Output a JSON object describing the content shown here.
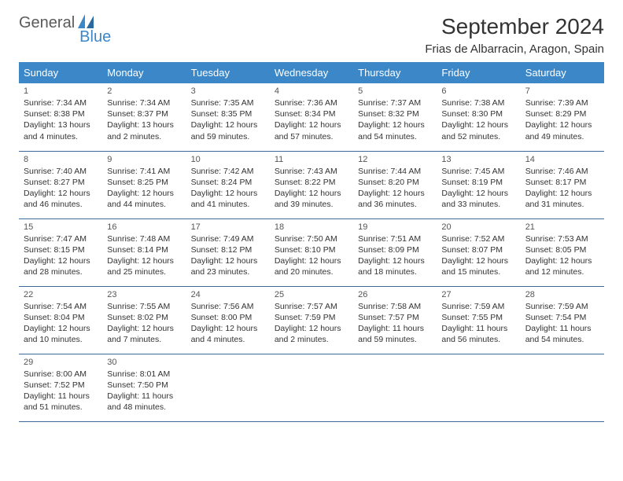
{
  "logo": {
    "text1": "General",
    "text2": "Blue"
  },
  "title": "September 2024",
  "location": "Frias de Albarracin, Aragon, Spain",
  "colors": {
    "header_bg": "#3b87c8",
    "header_text": "#ffffff",
    "row_border": "#3b6a9a",
    "logo_gray": "#5a5a5a",
    "logo_blue": "#3b87c8"
  },
  "weekdays": [
    "Sunday",
    "Monday",
    "Tuesday",
    "Wednesday",
    "Thursday",
    "Friday",
    "Saturday"
  ],
  "weeks": [
    [
      {
        "n": "1",
        "sr": "Sunrise: 7:34 AM",
        "ss": "Sunset: 8:38 PM",
        "d1": "Daylight: 13 hours",
        "d2": "and 4 minutes."
      },
      {
        "n": "2",
        "sr": "Sunrise: 7:34 AM",
        "ss": "Sunset: 8:37 PM",
        "d1": "Daylight: 13 hours",
        "d2": "and 2 minutes."
      },
      {
        "n": "3",
        "sr": "Sunrise: 7:35 AM",
        "ss": "Sunset: 8:35 PM",
        "d1": "Daylight: 12 hours",
        "d2": "and 59 minutes."
      },
      {
        "n": "4",
        "sr": "Sunrise: 7:36 AM",
        "ss": "Sunset: 8:34 PM",
        "d1": "Daylight: 12 hours",
        "d2": "and 57 minutes."
      },
      {
        "n": "5",
        "sr": "Sunrise: 7:37 AM",
        "ss": "Sunset: 8:32 PM",
        "d1": "Daylight: 12 hours",
        "d2": "and 54 minutes."
      },
      {
        "n": "6",
        "sr": "Sunrise: 7:38 AM",
        "ss": "Sunset: 8:30 PM",
        "d1": "Daylight: 12 hours",
        "d2": "and 52 minutes."
      },
      {
        "n": "7",
        "sr": "Sunrise: 7:39 AM",
        "ss": "Sunset: 8:29 PM",
        "d1": "Daylight: 12 hours",
        "d2": "and 49 minutes."
      }
    ],
    [
      {
        "n": "8",
        "sr": "Sunrise: 7:40 AM",
        "ss": "Sunset: 8:27 PM",
        "d1": "Daylight: 12 hours",
        "d2": "and 46 minutes."
      },
      {
        "n": "9",
        "sr": "Sunrise: 7:41 AM",
        "ss": "Sunset: 8:25 PM",
        "d1": "Daylight: 12 hours",
        "d2": "and 44 minutes."
      },
      {
        "n": "10",
        "sr": "Sunrise: 7:42 AM",
        "ss": "Sunset: 8:24 PM",
        "d1": "Daylight: 12 hours",
        "d2": "and 41 minutes."
      },
      {
        "n": "11",
        "sr": "Sunrise: 7:43 AM",
        "ss": "Sunset: 8:22 PM",
        "d1": "Daylight: 12 hours",
        "d2": "and 39 minutes."
      },
      {
        "n": "12",
        "sr": "Sunrise: 7:44 AM",
        "ss": "Sunset: 8:20 PM",
        "d1": "Daylight: 12 hours",
        "d2": "and 36 minutes."
      },
      {
        "n": "13",
        "sr": "Sunrise: 7:45 AM",
        "ss": "Sunset: 8:19 PM",
        "d1": "Daylight: 12 hours",
        "d2": "and 33 minutes."
      },
      {
        "n": "14",
        "sr": "Sunrise: 7:46 AM",
        "ss": "Sunset: 8:17 PM",
        "d1": "Daylight: 12 hours",
        "d2": "and 31 minutes."
      }
    ],
    [
      {
        "n": "15",
        "sr": "Sunrise: 7:47 AM",
        "ss": "Sunset: 8:15 PM",
        "d1": "Daylight: 12 hours",
        "d2": "and 28 minutes."
      },
      {
        "n": "16",
        "sr": "Sunrise: 7:48 AM",
        "ss": "Sunset: 8:14 PM",
        "d1": "Daylight: 12 hours",
        "d2": "and 25 minutes."
      },
      {
        "n": "17",
        "sr": "Sunrise: 7:49 AM",
        "ss": "Sunset: 8:12 PM",
        "d1": "Daylight: 12 hours",
        "d2": "and 23 minutes."
      },
      {
        "n": "18",
        "sr": "Sunrise: 7:50 AM",
        "ss": "Sunset: 8:10 PM",
        "d1": "Daylight: 12 hours",
        "d2": "and 20 minutes."
      },
      {
        "n": "19",
        "sr": "Sunrise: 7:51 AM",
        "ss": "Sunset: 8:09 PM",
        "d1": "Daylight: 12 hours",
        "d2": "and 18 minutes."
      },
      {
        "n": "20",
        "sr": "Sunrise: 7:52 AM",
        "ss": "Sunset: 8:07 PM",
        "d1": "Daylight: 12 hours",
        "d2": "and 15 minutes."
      },
      {
        "n": "21",
        "sr": "Sunrise: 7:53 AM",
        "ss": "Sunset: 8:05 PM",
        "d1": "Daylight: 12 hours",
        "d2": "and 12 minutes."
      }
    ],
    [
      {
        "n": "22",
        "sr": "Sunrise: 7:54 AM",
        "ss": "Sunset: 8:04 PM",
        "d1": "Daylight: 12 hours",
        "d2": "and 10 minutes."
      },
      {
        "n": "23",
        "sr": "Sunrise: 7:55 AM",
        "ss": "Sunset: 8:02 PM",
        "d1": "Daylight: 12 hours",
        "d2": "and 7 minutes."
      },
      {
        "n": "24",
        "sr": "Sunrise: 7:56 AM",
        "ss": "Sunset: 8:00 PM",
        "d1": "Daylight: 12 hours",
        "d2": "and 4 minutes."
      },
      {
        "n": "25",
        "sr": "Sunrise: 7:57 AM",
        "ss": "Sunset: 7:59 PM",
        "d1": "Daylight: 12 hours",
        "d2": "and 2 minutes."
      },
      {
        "n": "26",
        "sr": "Sunrise: 7:58 AM",
        "ss": "Sunset: 7:57 PM",
        "d1": "Daylight: 11 hours",
        "d2": "and 59 minutes."
      },
      {
        "n": "27",
        "sr": "Sunrise: 7:59 AM",
        "ss": "Sunset: 7:55 PM",
        "d1": "Daylight: 11 hours",
        "d2": "and 56 minutes."
      },
      {
        "n": "28",
        "sr": "Sunrise: 7:59 AM",
        "ss": "Sunset: 7:54 PM",
        "d1": "Daylight: 11 hours",
        "d2": "and 54 minutes."
      }
    ],
    [
      {
        "n": "29",
        "sr": "Sunrise: 8:00 AM",
        "ss": "Sunset: 7:52 PM",
        "d1": "Daylight: 11 hours",
        "d2": "and 51 minutes."
      },
      {
        "n": "30",
        "sr": "Sunrise: 8:01 AM",
        "ss": "Sunset: 7:50 PM",
        "d1": "Daylight: 11 hours",
        "d2": "and 48 minutes."
      },
      null,
      null,
      null,
      null,
      null
    ]
  ]
}
